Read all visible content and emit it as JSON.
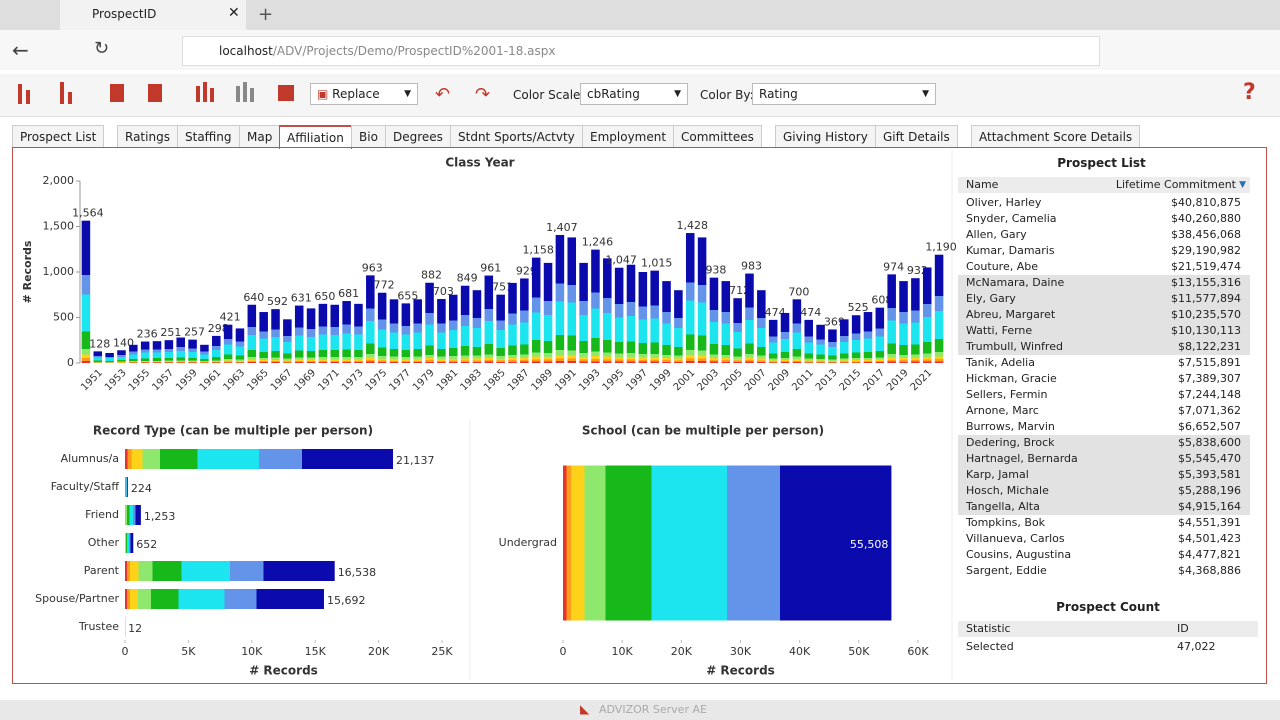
{
  "browser": {
    "tab_title": "ProspectID",
    "url_host": "localhost",
    "url_path": "/ADV/Projects/Demo/ProspectID%2001-18.aspx"
  },
  "toolbar": {
    "mode": "Replace",
    "color_scale_label": "Color Scale:",
    "color_scale": "cbRating",
    "color_by_label": "Color By:",
    "color_by": "Rating"
  },
  "tabs": {
    "items": [
      "Prospect List",
      "Ratings",
      "Staffing",
      "Map",
      "Affiliation",
      "Bio",
      "Degrees",
      "Stdnt Sports/Actvty",
      "Employment",
      "Committees",
      "Giving History",
      "Gift Details",
      "Attachment Score Details"
    ],
    "active": 4
  },
  "class_year_chart": {
    "type": "bar",
    "title": "Class Year",
    "ylabel": "# Records",
    "categories": [
      null,
      "1951",
      null,
      "1953",
      null,
      "1955",
      null,
      "1957",
      null,
      "1959",
      null,
      "1961",
      null,
      "1963",
      null,
      "1965",
      null,
      "1967",
      null,
      "1969",
      null,
      "1971",
      null,
      "1973",
      null,
      "1975",
      null,
      "1977",
      null,
      "1979",
      null,
      "1981",
      null,
      "1983",
      null,
      "1985",
      null,
      "1987",
      null,
      "1989",
      null,
      "1991",
      null,
      "1993",
      null,
      "1995",
      null,
      "1997",
      null,
      "1999",
      null,
      "2001",
      null,
      "2003",
      null,
      "2005",
      null,
      "2007",
      null,
      "2009",
      null,
      "2011",
      null,
      "2013",
      null,
      "2015",
      null,
      "2017",
      null,
      "2019",
      null,
      "2021",
      null
    ],
    "values": [
      1564,
      128,
      110,
      140,
      200,
      236,
      240,
      251,
      280,
      257,
      200,
      298,
      421,
      380,
      640,
      560,
      592,
      480,
      631,
      600,
      650,
      640,
      681,
      650,
      963,
      772,
      700,
      655,
      700,
      882,
      703,
      750,
      849,
      800,
      961,
      751,
      880,
      929,
      1158,
      1100,
      1407,
      1380,
      1100,
      1246,
      1150,
      1047,
      1080,
      1000,
      1015,
      900,
      800,
      1428,
      1380,
      938,
      900,
      712,
      983,
      800,
      474,
      550,
      700,
      474,
      420,
      369,
      480,
      525,
      560,
      608,
      974,
      900,
      932,
      1050,
      1190
    ],
    "value_labels": [
      "1,564",
      "128",
      null,
      "140",
      null,
      "236",
      null,
      "251",
      null,
      "257",
      null,
      "298",
      "421",
      null,
      "640",
      null,
      "592",
      null,
      "631",
      null,
      "650",
      null,
      "681",
      null,
      "963",
      "772",
      null,
      "655",
      null,
      "882",
      "703",
      null,
      "849",
      null,
      "961",
      "751",
      null,
      "929",
      "1,158",
      null,
      "1,407",
      null,
      null,
      "1,246",
      null,
      "1,047",
      null,
      null,
      "1,015",
      null,
      null,
      "1,428",
      null,
      "938",
      null,
      "712",
      "983",
      null,
      "474",
      null,
      "700",
      "474",
      null,
      "369",
      null,
      "525",
      null,
      "608",
      "974",
      null,
      "932",
      null,
      "1,190"
    ],
    "ylim": [
      0,
      2000
    ],
    "yticks": [
      0,
      500,
      {
        "value": 1000,
        "label": "1,000"
      },
      {
        "value": 1500,
        "label": "1,500"
      },
      {
        "value": 2000,
        "label": "2,000"
      }
    ]
  },
  "record_type_chart": {
    "type": "hbar",
    "title": "Record Type (can be multiple per person)",
    "xlabel": "# Records",
    "categories": [
      "Alumnus/a",
      "Faculty/Staff",
      "Friend",
      "Other",
      "Parent",
      "Spouse/Partner",
      "Trustee"
    ],
    "values": [
      21137,
      224,
      1253,
      652,
      16538,
      15692,
      12
    ],
    "value_labels": [
      "21,137",
      "224",
      "1,253",
      "652",
      "16,538",
      "15,692",
      "12"
    ],
    "xlim": [
      0,
      25000
    ],
    "xticks": [
      0,
      {
        "value": 5000,
        "label": "5K"
      },
      {
        "value": 10000,
        "label": "10K"
      },
      {
        "value": 15000,
        "label": "15K"
      },
      {
        "value": 20000,
        "label": "20K"
      },
      {
        "value": 25000,
        "label": "25K"
      }
    ]
  },
  "school_chart": {
    "type": "hbar",
    "title": "School (can be multiple per person)",
    "xlabel": "# Records",
    "categories": [
      "Undergrad"
    ],
    "values": [
      55508
    ],
    "value_labels": [
      "55,508"
    ],
    "xlim": [
      0,
      60000
    ],
    "xticks": [
      0,
      {
        "value": 10000,
        "label": "10K"
      },
      {
        "value": 20000,
        "label": "20K"
      },
      {
        "value": 30000,
        "label": "30K"
      },
      {
        "value": 40000,
        "label": "40K"
      },
      {
        "value": 50000,
        "label": "50K"
      },
      {
        "value": 60000,
        "label": "60K"
      }
    ]
  },
  "prospect_list": {
    "title": "Prospect List",
    "columns": [
      "Name",
      "Lifetime Commitment"
    ],
    "rows": [
      {
        "name": "Oliver, Harley",
        "amount": "$40,810,875"
      },
      {
        "name": "Snyder, Camelia",
        "amount": "$40,260,880"
      },
      {
        "name": "Allen, Gary",
        "amount": "$38,456,068"
      },
      {
        "name": "Kumar, Damaris",
        "amount": "$29,190,982"
      },
      {
        "name": "Couture, Abe",
        "amount": "$21,519,474"
      },
      {
        "name": "McNamara, Daine",
        "amount": "$13,155,316",
        "highlight": true
      },
      {
        "name": "Ely, Gary",
        "amount": "$11,577,894",
        "highlight": true
      },
      {
        "name": "Abreu, Margaret",
        "amount": "$10,235,570",
        "highlight": true
      },
      {
        "name": "Watti, Ferne",
        "amount": "$10,130,113",
        "highlight": true
      },
      {
        "name": "Trumbull, Winfred",
        "amount": "$8,122,231",
        "highlight": true
      },
      {
        "name": "Tanik, Adelia",
        "amount": "$7,515,891"
      },
      {
        "name": "Hickman, Gracie",
        "amount": "$7,389,307"
      },
      {
        "name": "Sellers, Fermin",
        "amount": "$7,244,148"
      },
      {
        "name": "Arnone, Marc",
        "amount": "$7,071,362"
      },
      {
        "name": "Burrows, Marvin",
        "amount": "$6,652,507"
      },
      {
        "name": "Dedering, Brock",
        "amount": "$5,838,600",
        "highlight": true
      },
      {
        "name": "Hartnagel, Bernarda",
        "amount": "$5,545,470",
        "highlight": true
      },
      {
        "name": "Karp, Jamal",
        "amount": "$5,393,581",
        "highlight": true
      },
      {
        "name": "Hosch, Michale",
        "amount": "$5,288,196",
        "highlight": true
      },
      {
        "name": "Tangella, Alta",
        "amount": "$4,915,164",
        "highlight": true
      },
      {
        "name": "Tompkins, Bok",
        "amount": "$4,551,391"
      },
      {
        "name": "Villanueva, Carlos",
        "amount": "$4,501,423"
      },
      {
        "name": "Cousins, Augustina",
        "amount": "$4,477,821"
      },
      {
        "name": "Sargent, Eddie",
        "amount": "$4,368,886"
      }
    ]
  },
  "prospect_count": {
    "title": "Prospect Count",
    "columns": [
      "Statistic",
      "ID"
    ],
    "rows": [
      [
        "Selected",
        "47,022"
      ]
    ]
  },
  "footer": "ADVIZOR Server AE"
}
